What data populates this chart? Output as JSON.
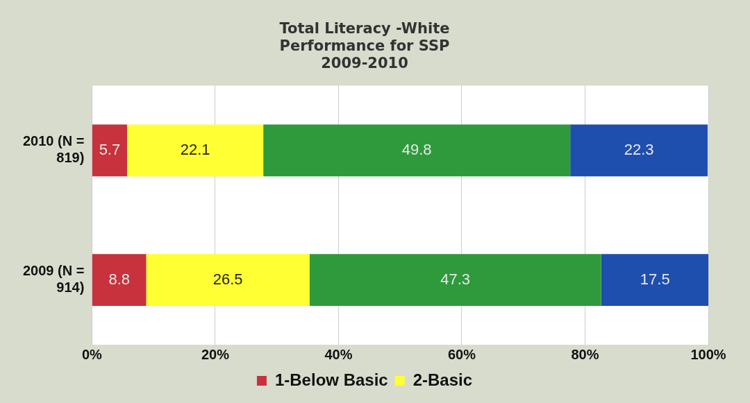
{
  "chart_data": {
    "type": "bar",
    "orientation": "horizontal",
    "stacked": true,
    "title": "Total Literacy -White\nPerformance for SSP\n2009-2010",
    "categories": [
      "2010 (N = 819)",
      "2009 (N = 914)"
    ],
    "series": [
      {
        "name": "1-Below Basic",
        "color": "#c8323c",
        "values": [
          5.7,
          8.8
        ]
      },
      {
        "name": "2-Basic",
        "color": "#ffff33",
        "values": [
          22.1,
          26.5
        ]
      },
      {
        "color": "#2e9a3c",
        "values": [
          49.8,
          47.3
        ]
      },
      {
        "color": "#1f4fae",
        "values": [
          22.3,
          17.5
        ]
      }
    ],
    "xlim": [
      0,
      100
    ],
    "xticks": [
      {
        "value": 0,
        "label": "0%"
      },
      {
        "value": 20,
        "label": "20%"
      },
      {
        "value": 40,
        "label": "40%"
      },
      {
        "value": 60,
        "label": "60%"
      },
      {
        "value": 80,
        "label": "80%"
      },
      {
        "value": 100,
        "label": "100%"
      }
    ],
    "grid": "x",
    "legend": "bottom",
    "data_labels": true
  }
}
